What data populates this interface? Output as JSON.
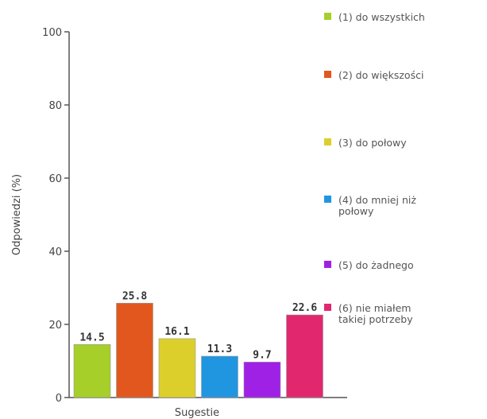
{
  "chart_data": {
    "type": "bar",
    "title": "",
    "xlabel": "Sugestie",
    "ylabel": "Odpowiedzi (%)",
    "ylim": [
      0,
      100
    ],
    "yticks": [
      0,
      20,
      40,
      60,
      80,
      100
    ],
    "grid": false,
    "legend_position": "right",
    "categories": [
      "(1) do wszystkich",
      "(2) do większości",
      "(3) do połowy",
      "(4) do mniej niż połowy",
      "(5) do żadnego",
      "(6) nie miałem takiej potrzeby"
    ],
    "values": [
      14.5,
      25.8,
      16.1,
      11.3,
      9.7,
      22.6
    ],
    "value_labels": [
      "14.5",
      "25.8",
      "16.1",
      "11.3",
      "9.7",
      "22.6"
    ],
    "colors": [
      "#a6cf2a",
      "#e2571e",
      "#dccf2c",
      "#2196e0",
      "#a021e6",
      "#e1286e"
    ],
    "legend": [
      [
        "(1) do wszystkich"
      ],
      [
        "(2) do większości"
      ],
      [
        "(3) do połowy"
      ],
      [
        "(4) do mniej niż",
        "połowy"
      ],
      [
        "(5) do żadnego"
      ],
      [
        "(6) nie miałem",
        "takiej potrzeby"
      ]
    ]
  }
}
